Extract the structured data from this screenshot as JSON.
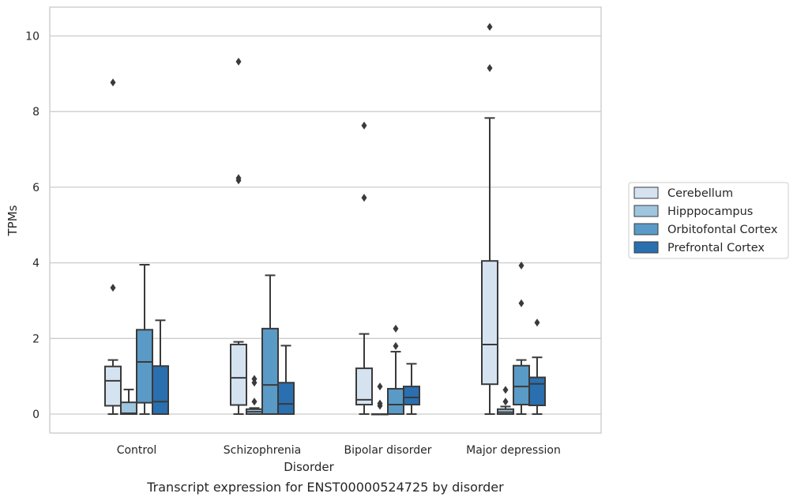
{
  "caption": "Transcript expression for ENST00000524725 by disorder",
  "chart_data": {
    "type": "boxplot",
    "title": "",
    "xlabel": "Disorder",
    "ylabel": "TPMs",
    "ylim": [
      -0.5,
      10.75
    ],
    "yticks": [
      0,
      2,
      4,
      6,
      8,
      10
    ],
    "grid": "horizontal",
    "legend_position": "right",
    "categories": [
      "Control",
      "Schizophrenia",
      "Bipolar disorder",
      "Major depression"
    ],
    "series": [
      {
        "name": "Cerebellum",
        "color": "#d5e3f1",
        "boxes": [
          {
            "low": 0,
            "q1": 0.22,
            "median": 0.88,
            "q3": 1.26,
            "high": 1.43,
            "outliers": [
              3.34,
              8.77
            ]
          },
          {
            "low": 0,
            "q1": 0.24,
            "median": 0.96,
            "q3": 1.84,
            "high": 1.91,
            "outliers": [
              6.18,
              6.24,
              9.32
            ]
          },
          {
            "low": 0,
            "q1": 0.25,
            "median": 0.38,
            "q3": 1.21,
            "high": 2.12,
            "outliers": [
              5.72,
              7.63
            ]
          },
          {
            "low": 0,
            "q1": 0.79,
            "median": 1.84,
            "q3": 4.05,
            "high": 7.83,
            "outliers": [
              9.15,
              10.24
            ]
          }
        ]
      },
      {
        "name": "Hipppocampus",
        "color": "#9fc6df",
        "boxes": [
          {
            "low": 0,
            "q1": 0,
            "median": 0.02,
            "q3": 0.31,
            "high": 0.65,
            "outliers": []
          },
          {
            "low": 0,
            "q1": 0,
            "median": 0.06,
            "q3": 0.13,
            "high": 0.16,
            "outliers": [
              0.33,
              0.83,
              0.93
            ]
          },
          {
            "low": 0,
            "q1": 0,
            "median": 0,
            "q3": 0,
            "high": 0,
            "outliers": [
              0.22,
              0.28,
              0.73
            ]
          },
          {
            "low": 0,
            "q1": 0,
            "median": 0.05,
            "q3": 0.13,
            "high": 0.2,
            "outliers": [
              0.33,
              0.64
            ]
          }
        ]
      },
      {
        "name": "Orbitofontal Cortex",
        "color": "#5a9ac6",
        "boxes": [
          {
            "low": 0,
            "q1": 0.3,
            "median": 1.38,
            "q3": 2.23,
            "high": 3.95,
            "outliers": []
          },
          {
            "low": 0,
            "q1": 0,
            "median": 0.77,
            "q3": 2.26,
            "high": 3.67,
            "outliers": []
          },
          {
            "low": 0,
            "q1": 0,
            "median": 0.25,
            "q3": 0.67,
            "high": 1.65,
            "outliers": [
              1.8,
              2.26
            ]
          },
          {
            "low": 0,
            "q1": 0.25,
            "median": 0.73,
            "q3": 1.28,
            "high": 1.43,
            "outliers": [
              2.93,
              3.93
            ]
          }
        ]
      },
      {
        "name": "Prefrontal Cortex",
        "color": "#2a6fb0",
        "boxes": [
          {
            "low": 0,
            "q1": 0,
            "median": 0.33,
            "q3": 1.27,
            "high": 2.48,
            "outliers": []
          },
          {
            "low": 0,
            "q1": 0,
            "median": 0.27,
            "q3": 0.83,
            "high": 1.81,
            "outliers": []
          },
          {
            "low": 0,
            "q1": 0.25,
            "median": 0.44,
            "q3": 0.73,
            "high": 1.33,
            "outliers": []
          },
          {
            "low": 0,
            "q1": 0.23,
            "median": 0.8,
            "q3": 0.97,
            "high": 1.5,
            "outliers": [
              2.42
            ]
          }
        ]
      }
    ]
  }
}
